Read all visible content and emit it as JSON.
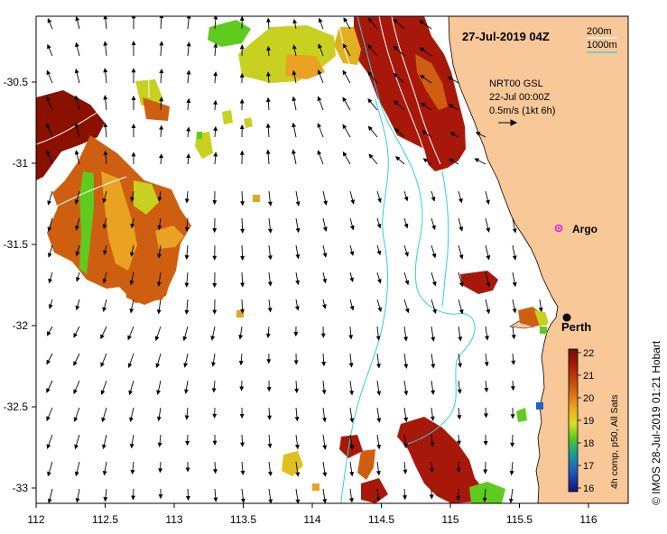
{
  "title": "27-Jul-2019 04Z",
  "contours": {
    "label_200": "200m",
    "label_1000": "1000m",
    "color_200": "#ffffff",
    "color_1000": "#2bd3d8"
  },
  "current_source": {
    "line1": "NRT00 GSL",
    "line2": "22-Jul 00:00Z",
    "line3": "0.5m/s (1kt 6h)"
  },
  "places": {
    "argo": "Argo",
    "perth": "Perth"
  },
  "colorbar": {
    "caption": "4h comp, p50, All Sats",
    "ticks": [
      "22",
      "21",
      "20",
      "19",
      "18",
      "17",
      "16"
    ],
    "stops": [
      "#7a0a00",
      "#a81e0a",
      "#cf5f10",
      "#e9a221",
      "#dede22",
      "#5fcb1e",
      "#1aa58b",
      "#1f63c4",
      "#13137a"
    ]
  },
  "credit": "© IMOS 28-Jul-2019 01:21 Hobart",
  "axes": {
    "x_ticks": [
      "112",
      "112.5",
      "113",
      "113.5",
      "114",
      "114.5",
      "115",
      "115.5",
      "116"
    ],
    "y_ticks": [
      "-30.5",
      "-31",
      "-31.5",
      "-32",
      "-32.5",
      "-33"
    ]
  },
  "colors": {
    "land": "#f8c899",
    "sea": "#ffffff"
  }
}
